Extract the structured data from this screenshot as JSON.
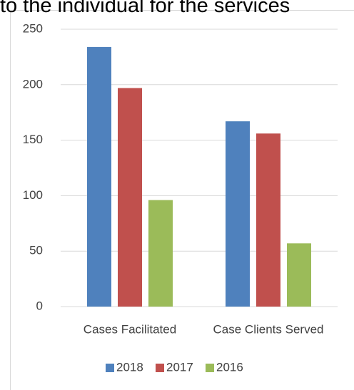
{
  "document_text": "to the individual for the services",
  "chart_data": {
    "type": "bar",
    "categories": [
      "Cases Facilitated",
      "Case Clients Served"
    ],
    "series": [
      {
        "name": "2018",
        "color": "#4f81bd",
        "values": [
          234,
          167
        ]
      },
      {
        "name": "2017",
        "color": "#c0504d",
        "values": [
          197,
          156
        ]
      },
      {
        "name": "2016",
        "color": "#9bbb59",
        "values": [
          96,
          57
        ]
      }
    ],
    "ylim": [
      0,
      250
    ],
    "yticks": [
      0,
      50,
      100,
      150,
      200,
      250
    ],
    "grid": true,
    "legend": "bottom"
  }
}
